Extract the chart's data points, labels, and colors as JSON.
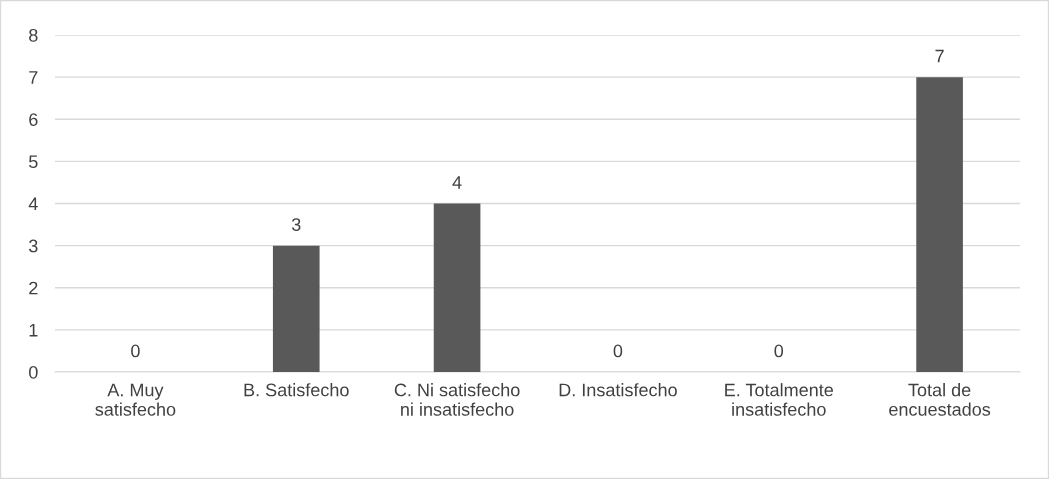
{
  "chart_data": {
    "type": "bar",
    "categories": [
      "A. Muy satisfecho",
      "B. Satisfecho",
      "C. Ni satisfecho ni insatisfecho",
      "D. Insatisfecho",
      "E. Totalmente insatisfecho",
      "Total de encuestados"
    ],
    "values": [
      0,
      3,
      4,
      0,
      0,
      7
    ],
    "color": "#595959",
    "ylim": [
      0,
      8
    ],
    "yticks": [
      0,
      1,
      2,
      3,
      4,
      5,
      6,
      7,
      8
    ],
    "grid": "y",
    "data_labels": true
  }
}
